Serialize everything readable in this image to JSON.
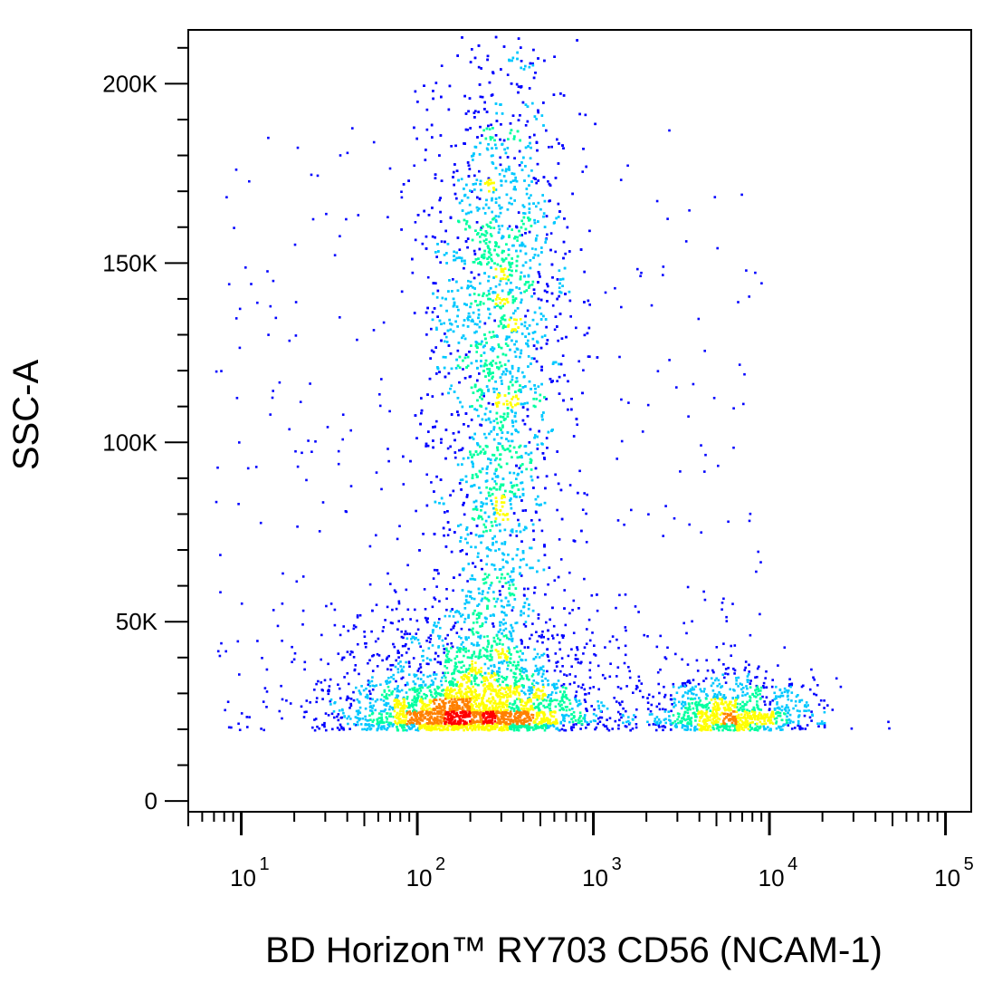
{
  "chart_data": {
    "type": "scatter",
    "subtype": "flow-cytometry-density-dot-plot",
    "xlabel": "BD Horizon™ RY703 CD56 (NCAM-1)",
    "ylabel": "SSC-A",
    "x_scale": "log",
    "xlim": [
      5,
      140000
    ],
    "ylim": [
      -3000,
      215000
    ],
    "x_ticks": [
      {
        "value": 10,
        "base": "10",
        "exp": "1"
      },
      {
        "value": 100,
        "base": "10",
        "exp": "2"
      },
      {
        "value": 1000,
        "base": "10",
        "exp": "3"
      },
      {
        "value": 10000,
        "base": "10",
        "exp": "4"
      },
      {
        "value": 100000,
        "base": "10",
        "exp": "5"
      }
    ],
    "y_ticks": [
      {
        "value": 0,
        "label": "0"
      },
      {
        "value": 50000,
        "label": "50K"
      },
      {
        "value": 100000,
        "label": "100K"
      },
      {
        "value": 150000,
        "label": "150K"
      },
      {
        "value": 200000,
        "label": "200K"
      }
    ],
    "density_colors": [
      "#0000ff",
      "#00c8ff",
      "#00ffa0",
      "#ffff00",
      "#ff8000",
      "#ff0000"
    ],
    "populations": [
      {
        "name": "low-SSC cluster",
        "x_center": 200,
        "y_center": 25000,
        "spread_x_log": 0.35,
        "spread_y": 6000
      },
      {
        "name": "high-SSC cluster",
        "x_center": 280,
        "y_center": 140000,
        "spread_x_log": 0.2,
        "spread_y": 38000
      },
      {
        "name": "CD56-bright cluster",
        "x_center": 6000,
        "y_center": 26000,
        "spread_x_log": 0.25,
        "spread_y": 5000
      }
    ]
  }
}
